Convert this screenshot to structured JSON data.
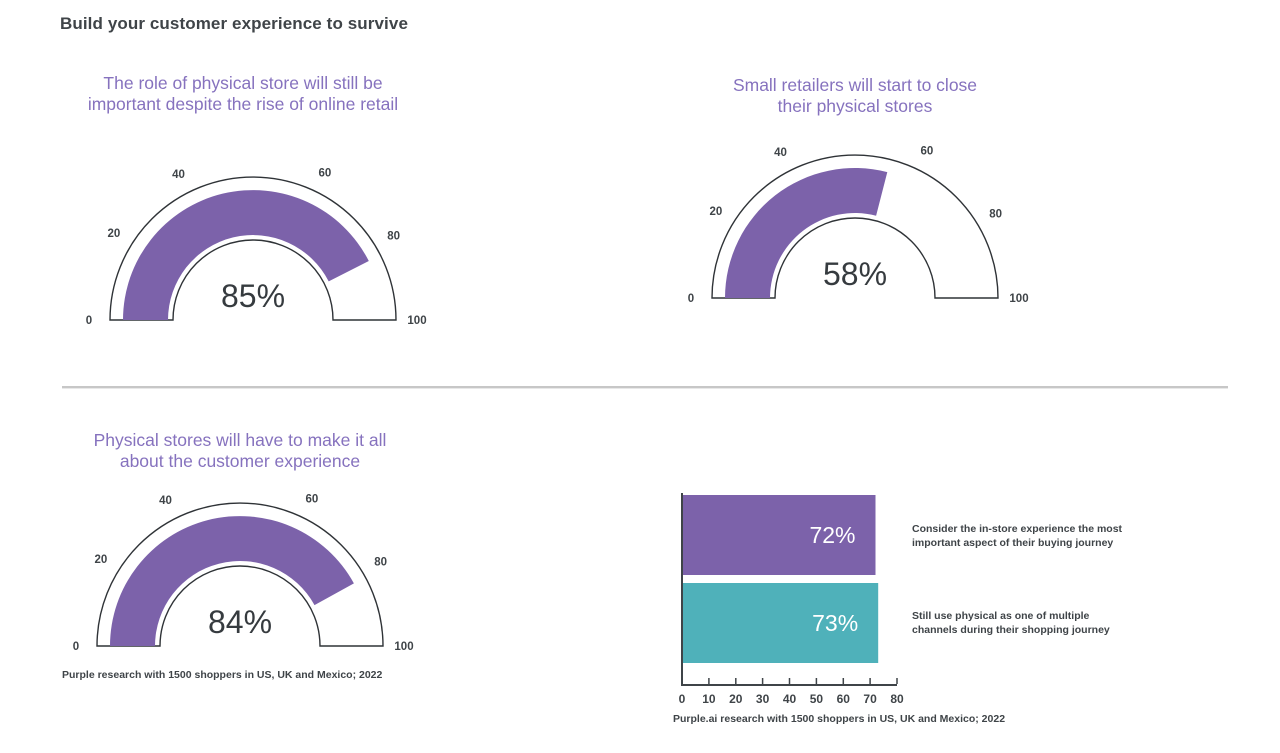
{
  "page": {
    "title": "Build your customer experience to survive"
  },
  "colors": {
    "purple": "#7c62aa",
    "teal": "#4fb1ba",
    "heading_purple": "#8672be",
    "text_dark": "#3f4448",
    "gauge_outline": "#2f3337",
    "gauge_value_text": "#363b3f",
    "bar_value_text": "#ffffff",
    "divider": "#c7c7c7"
  },
  "chart_data": [
    {
      "type": "gauge",
      "title": "The role of physical store will still be important despite the rise of online retail",
      "title_lines": [
        "The role of physical store will still be",
        "important despite the rise of online retail"
      ],
      "value": 85,
      "value_label": "85%",
      "range": [
        0,
        100
      ],
      "ticks": [
        "0",
        "20",
        "40",
        "60",
        "80",
        "100"
      ],
      "color": "#7c62aa"
    },
    {
      "type": "gauge",
      "title": "Small retailers will start to close their physical stores",
      "title_lines": [
        "Small retailers will start to close",
        "their physical stores"
      ],
      "value": 58,
      "value_label": "58%",
      "range": [
        0,
        100
      ],
      "ticks": [
        "0",
        "20",
        "40",
        "60",
        "80",
        "100"
      ],
      "color": "#7c62aa"
    },
    {
      "type": "gauge",
      "title": "Physical stores will have to make it all about the customer experience",
      "title_lines": [
        "Physical stores will have to make it all",
        "about the customer experience"
      ],
      "value": 84,
      "value_label": "84%",
      "range": [
        0,
        100
      ],
      "ticks": [
        "0",
        "20",
        "40",
        "60",
        "80",
        "100"
      ],
      "color": "#7c62aa",
      "footnote": "Purple research with 1500 shoppers in US, UK and Mexico; 2022"
    },
    {
      "type": "bar",
      "orientation": "horizontal",
      "categories": [
        "Consider the in-store experience the most important aspect of their buying journey",
        "Still use physical as one of multiple channels during their shopping journey"
      ],
      "categories_lines": [
        [
          "Consider the in-store experience the most",
          "important aspect of their buying journey"
        ],
        [
          "Still use physical as one of multiple",
          "channels during their shopping journey"
        ]
      ],
      "values": [
        72,
        73
      ],
      "value_labels": [
        "72%",
        "73%"
      ],
      "bar_colors": [
        "#7c62aa",
        "#4fb1ba"
      ],
      "xticks": [
        "0",
        "10",
        "20",
        "30",
        "40",
        "50",
        "60",
        "70",
        "80"
      ],
      "xlim": [
        0,
        80
      ],
      "grid": false,
      "legend": false,
      "footnote": "Purple.ai research with 1500 shoppers in US, UK and Mexico; 2022"
    }
  ]
}
